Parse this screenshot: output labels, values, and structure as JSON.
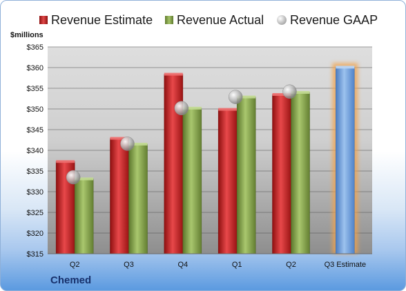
{
  "legend": {
    "estimate": "Revenue Estimate",
    "actual": "Revenue Actual",
    "gaap": "Revenue GAAP"
  },
  "unit_label": "$millions",
  "company": "Chemed",
  "chart_data": {
    "type": "bar",
    "categories": [
      "Q2",
      "Q3",
      "Q4",
      "Q1",
      "Q2",
      "Q3 Estimate"
    ],
    "ylim": [
      315,
      365
    ],
    "yticks": [
      "$315",
      "$320",
      "$325",
      "$330",
      "$335",
      "$340",
      "$345",
      "$350",
      "$355",
      "$360",
      "$365"
    ],
    "grid": true,
    "legend_position": "top",
    "series": [
      {
        "name": "Revenue Estimate",
        "color": "#c8262b",
        "values": [
          337.3,
          342.9,
          358.4,
          349.9,
          353.5,
          null
        ]
      },
      {
        "name": "Revenue Actual",
        "color": "#8aaa50",
        "values": [
          333.1,
          341.5,
          350.2,
          352.9,
          354.0,
          null
        ]
      },
      {
        "name": "Revenue GAAP",
        "color": "#c0c0c0",
        "marker": "circle",
        "values": [
          333.5,
          341.6,
          350.2,
          352.9,
          354.2,
          null
        ]
      }
    ],
    "forecast": {
      "category": "Q3 Estimate",
      "value": 360.1,
      "color": "#6f9fd8"
    }
  }
}
